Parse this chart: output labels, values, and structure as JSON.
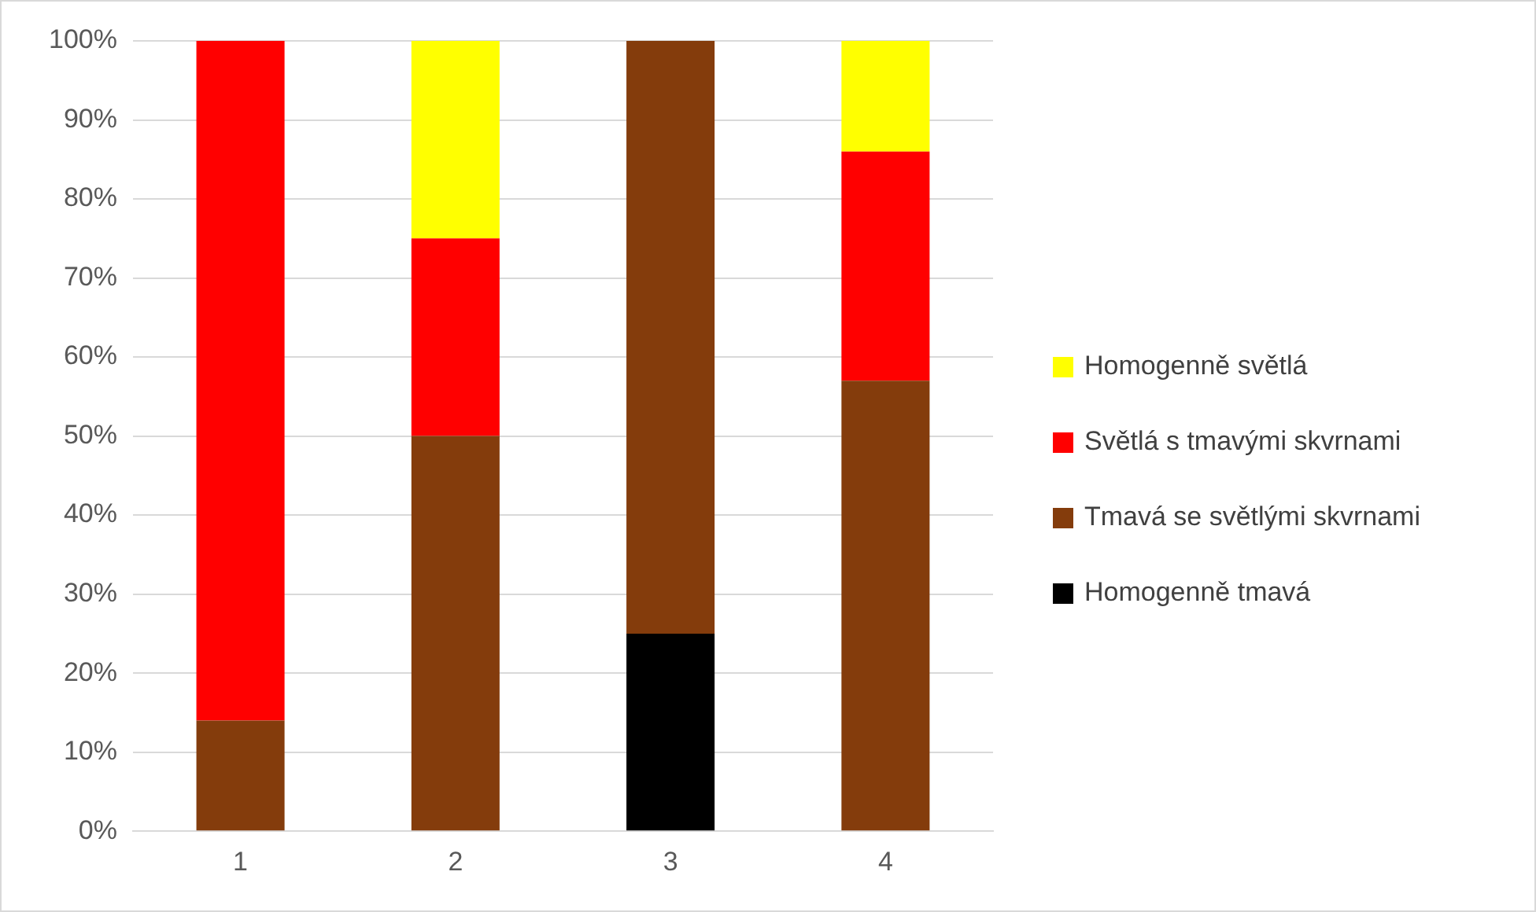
{
  "chart_data": {
    "type": "bar",
    "stacked": true,
    "categories": [
      "1",
      "2",
      "3",
      "4"
    ],
    "series": [
      {
        "name": "Homogenně tmavá",
        "color": "#000000",
        "values": [
          0,
          0,
          25,
          0
        ]
      },
      {
        "name": "Tmavá se světlými skvrnami",
        "color": "#843c0c",
        "values": [
          14,
          50,
          75,
          57
        ]
      },
      {
        "name": "Světlá s tmavými skvrnami",
        "color": "#ff0000",
        "values": [
          86,
          25,
          0,
          29
        ]
      },
      {
        "name": "Homogenně světlá",
        "color": "#ffff00",
        "values": [
          0,
          25,
          0,
          14
        ]
      }
    ],
    "ylim": [
      0,
      100
    ],
    "yticks": [
      {
        "value": 0,
        "label": "0%"
      },
      {
        "value": 10,
        "label": "10%"
      },
      {
        "value": 20,
        "label": "20%"
      },
      {
        "value": 30,
        "label": "30%"
      },
      {
        "value": 40,
        "label": "40%"
      },
      {
        "value": 50,
        "label": "50%"
      },
      {
        "value": 60,
        "label": "60%"
      },
      {
        "value": 70,
        "label": "70%"
      },
      {
        "value": 80,
        "label": "80%"
      },
      {
        "value": 90,
        "label": "90%"
      },
      {
        "value": 100,
        "label": "100%"
      }
    ],
    "grid": "y",
    "legend": "right"
  }
}
